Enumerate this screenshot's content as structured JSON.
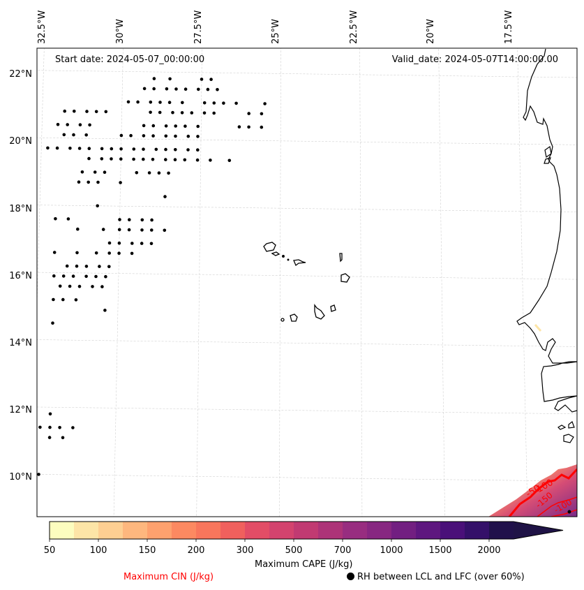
{
  "map": {
    "start_date": "Start date: 2024-05-07_00:00:00",
    "valid_date": "Valid_date: 2024-05-07T14:00:00.00",
    "extent": {
      "lon_min": -32.6,
      "lon_max": -16.1,
      "lat_min": 8.9,
      "lat_max": 22.7
    },
    "longitude_ticks": [
      "32.5°W",
      "30°W",
      "27.5°W",
      "25°W",
      "22.5°W",
      "20°W",
      "17.5°W"
    ],
    "latitude_ticks": [
      "22°N",
      "20°N",
      "18°N",
      "16°N",
      "14°N",
      "12°N",
      "10°N"
    ],
    "gridlines": true,
    "rh_dot_rows": [
      {
        "lat": 21.8,
        "lons": [
          -29.0,
          -28.5,
          -27.5,
          -27.2
        ]
      },
      {
        "lat": 21.5,
        "lons": [
          -29.3,
          -29.0,
          -28.6,
          -28.3,
          -28.0,
          -27.6,
          -27.3,
          -27.0
        ]
      },
      {
        "lat": 21.1,
        "lons": [
          -29.8,
          -29.5,
          -29.1,
          -28.8,
          -28.5,
          -28.1,
          -27.4,
          -27.1,
          -26.8,
          -26.4,
          -25.5
        ]
      },
      {
        "lat": 20.8,
        "lons": [
          -31.8,
          -31.5,
          -31.1,
          -30.8,
          -30.5,
          -29.1,
          -28.8,
          -28.4,
          -28.1,
          -27.8,
          -27.4,
          -27.1,
          -26.0,
          -25.6
        ]
      },
      {
        "lat": 20.4,
        "lons": [
          -32.0,
          -31.7,
          -31.3,
          -31.0,
          -29.3,
          -29.0,
          -28.6,
          -28.3,
          -28.0,
          -27.6,
          -26.3,
          -26.0,
          -25.6
        ]
      },
      {
        "lat": 20.1,
        "lons": [
          -31.8,
          -31.5,
          -31.1,
          -30.0,
          -29.7,
          -29.3,
          -29.0,
          -28.6,
          -28.3,
          -27.9,
          -27.6
        ]
      },
      {
        "lat": 19.7,
        "lons": [
          -32.3,
          -32.0,
          -31.6,
          -31.3,
          -31.0,
          -30.6,
          -30.3,
          -30.0,
          -29.6,
          -29.3,
          -28.9,
          -28.6,
          -28.3,
          -27.9,
          -27.6
        ]
      },
      {
        "lat": 19.4,
        "lons": [
          -31.0,
          -30.6,
          -30.3,
          -30.0,
          -29.6,
          -29.3,
          -29.0,
          -28.6,
          -28.3,
          -28.0,
          -27.6,
          -27.2,
          -26.6
        ]
      },
      {
        "lat": 19.0,
        "lons": [
          -31.2,
          -30.8,
          -30.5,
          -29.5,
          -29.1,
          -28.8,
          -28.5
        ]
      },
      {
        "lat": 18.7,
        "lons": [
          -31.3,
          -31.0,
          -30.7,
          -30.0
        ]
      },
      {
        "lat": 18.3,
        "lons": [
          -28.6
        ]
      },
      {
        "lat": 18.0,
        "lons": [
          -30.7
        ]
      },
      {
        "lat": 17.6,
        "lons": [
          -32.0,
          -31.6,
          -30.0,
          -29.7,
          -29.3,
          -29.0
        ]
      },
      {
        "lat": 17.3,
        "lons": [
          -31.3,
          -30.5,
          -30.0,
          -29.7,
          -29.3,
          -29.0,
          -28.6
        ]
      },
      {
        "lat": 16.9,
        "lons": [
          -30.3,
          -30.0,
          -29.6,
          -29.3,
          -29.0
        ]
      },
      {
        "lat": 16.6,
        "lons": [
          -32.0,
          -31.3,
          -30.7,
          -30.3,
          -30.0,
          -29.6
        ]
      },
      {
        "lat": 16.2,
        "lons": [
          -31.6,
          -31.3,
          -31.0,
          -30.6,
          -30.3
        ]
      },
      {
        "lat": 15.9,
        "lons": [
          -32.0,
          -31.7,
          -31.4,
          -31.0,
          -30.7,
          -30.4
        ]
      },
      {
        "lat": 15.6,
        "lons": [
          -31.8,
          -31.5,
          -31.2,
          -30.8,
          -30.5
        ]
      },
      {
        "lat": 15.2,
        "lons": [
          -32.0,
          -31.7,
          -31.3
        ]
      },
      {
        "lat": 14.9,
        "lons": [
          -30.4
        ]
      },
      {
        "lat": 14.5,
        "lons": [
          -32.0
        ]
      },
      {
        "lat": 11.8,
        "lons": [
          -32.0
        ]
      },
      {
        "lat": 11.4,
        "lons": [
          -32.3,
          -32.0,
          -31.7,
          -31.3
        ]
      },
      {
        "lat": 11.1,
        "lons": [
          -32.0,
          -31.6
        ]
      },
      {
        "lat": 10.0,
        "lons": [
          -32.3
        ]
      }
    ],
    "cin_contour_labels": [
      "-50",
      "-100",
      "-150",
      "-100"
    ],
    "coastline_color": "#000000",
    "cin_color": "#ff0000",
    "gridline_color": "#d0d0d0"
  },
  "colorbar": {
    "label": "Maximum CAPE (J/kg)",
    "levels": [
      50,
      75,
      100,
      125,
      150,
      175,
      200,
      250,
      300,
      400,
      500,
      600,
      700,
      850,
      1000,
      1250,
      1500,
      1750,
      2000
    ],
    "tick_labels": [
      "50",
      "100",
      "150",
      "200",
      "300",
      "500",
      "700",
      "1000",
      "1500",
      "2000"
    ],
    "colors": [
      "#fcfdbf",
      "#fde5a7",
      "#fecf92",
      "#feb77e",
      "#fea16e",
      "#fc8961",
      "#f8765c",
      "#f0605d",
      "#e24d66",
      "#d3436e",
      "#c13a72",
      "#ad3378",
      "#982d80",
      "#872781",
      "#721f81",
      "#5e177f",
      "#4a1079",
      "#341069",
      "#20114b"
    ],
    "extend": "max",
    "extend_color": "#1f1346"
  },
  "legend": {
    "cin_label": "Maximum CIN (J/kg)",
    "cin_label_color": "#ff0000",
    "rh_label": "RH between LCL and LFC (over 60%)",
    "rh_marker": "filled-circle"
  }
}
